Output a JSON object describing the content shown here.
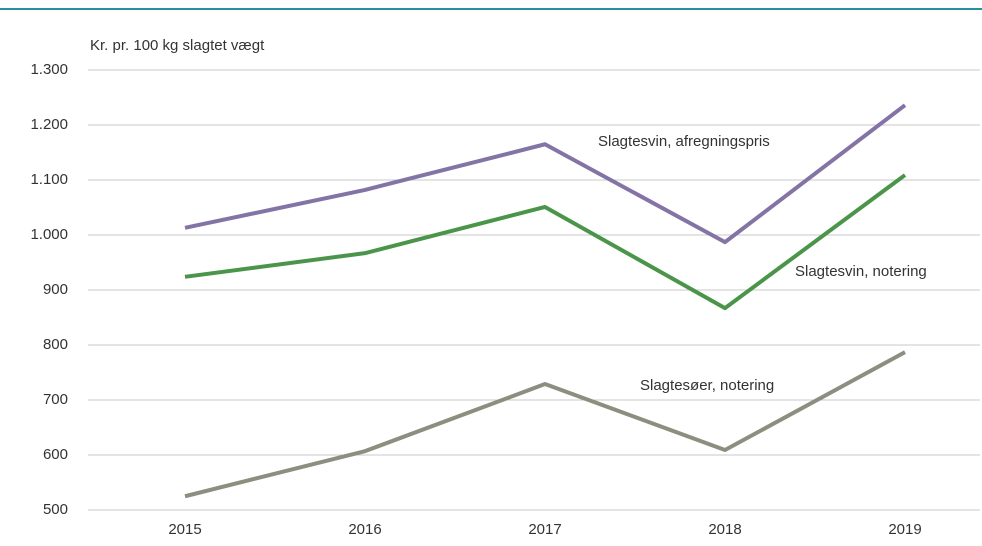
{
  "chart_data": {
    "type": "line",
    "y_axis_label": "Kr. pr. 100 kg slagtet vægt",
    "categories": [
      "2015",
      "2016",
      "2017",
      "2018",
      "2019"
    ],
    "series": [
      {
        "name": "Slagtesvin, afregningspris",
        "color": "#8474a6",
        "values": [
          1013,
          1082,
          1165,
          987,
          1236
        ]
      },
      {
        "name": "Slagtesvin, notering",
        "color": "#4a954a",
        "values": [
          924,
          967,
          1051,
          867,
          1109
        ]
      },
      {
        "name": "Slagtesøer, notering",
        "color": "#8e8e80",
        "values": [
          525,
          607,
          729,
          609,
          787
        ]
      }
    ],
    "ylim": [
      500,
      1300
    ],
    "yticks": [
      500,
      600,
      700,
      800,
      900,
      {
        "value": 1000,
        "label": "1.000"
      },
      {
        "value": 1100,
        "label": "1.100"
      },
      {
        "value": 1200,
        "label": "1.200"
      },
      {
        "value": 1300,
        "label": "1.300"
      }
    ],
    "grid": true
  }
}
